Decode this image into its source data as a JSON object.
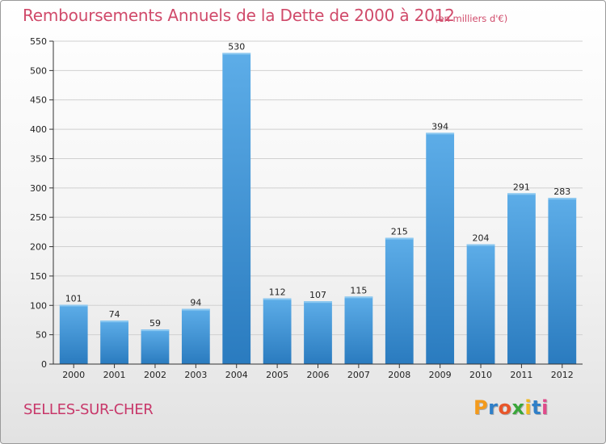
{
  "header": {
    "title": "Remboursements Annuels de la Dette de 2000 à 2012",
    "subtitle": "(en milliers d'€)"
  },
  "footer": {
    "commune": "SELLES-SUR-CHER",
    "logo_letters": [
      "P",
      "r",
      "o",
      "x",
      "i",
      "t",
      "i"
    ],
    "logo_colors": [
      "#f39a1c",
      "#2f7fc8",
      "#e8562a",
      "#3aa63a",
      "#f2b81c",
      "#2f7fc8",
      "#e04a8a"
    ]
  },
  "colors": {
    "bar_top": "#5dade8",
    "bar_bottom": "#2a7bbf",
    "grid": "#d0d0d0",
    "axis": "#333333",
    "title": "#d04a6a"
  },
  "chart_data": {
    "type": "bar",
    "categories": [
      "2000",
      "2001",
      "2002",
      "2003",
      "2004",
      "2005",
      "2006",
      "2007",
      "2008",
      "2009",
      "2010",
      "2011",
      "2012"
    ],
    "values": [
      101,
      74,
      59,
      94,
      530,
      112,
      107,
      115,
      215,
      394,
      204,
      291,
      283
    ],
    "ylim": [
      0,
      550
    ],
    "yticks": [
      0,
      50,
      100,
      150,
      200,
      250,
      300,
      350,
      400,
      450,
      500,
      550
    ],
    "grid": true
  }
}
